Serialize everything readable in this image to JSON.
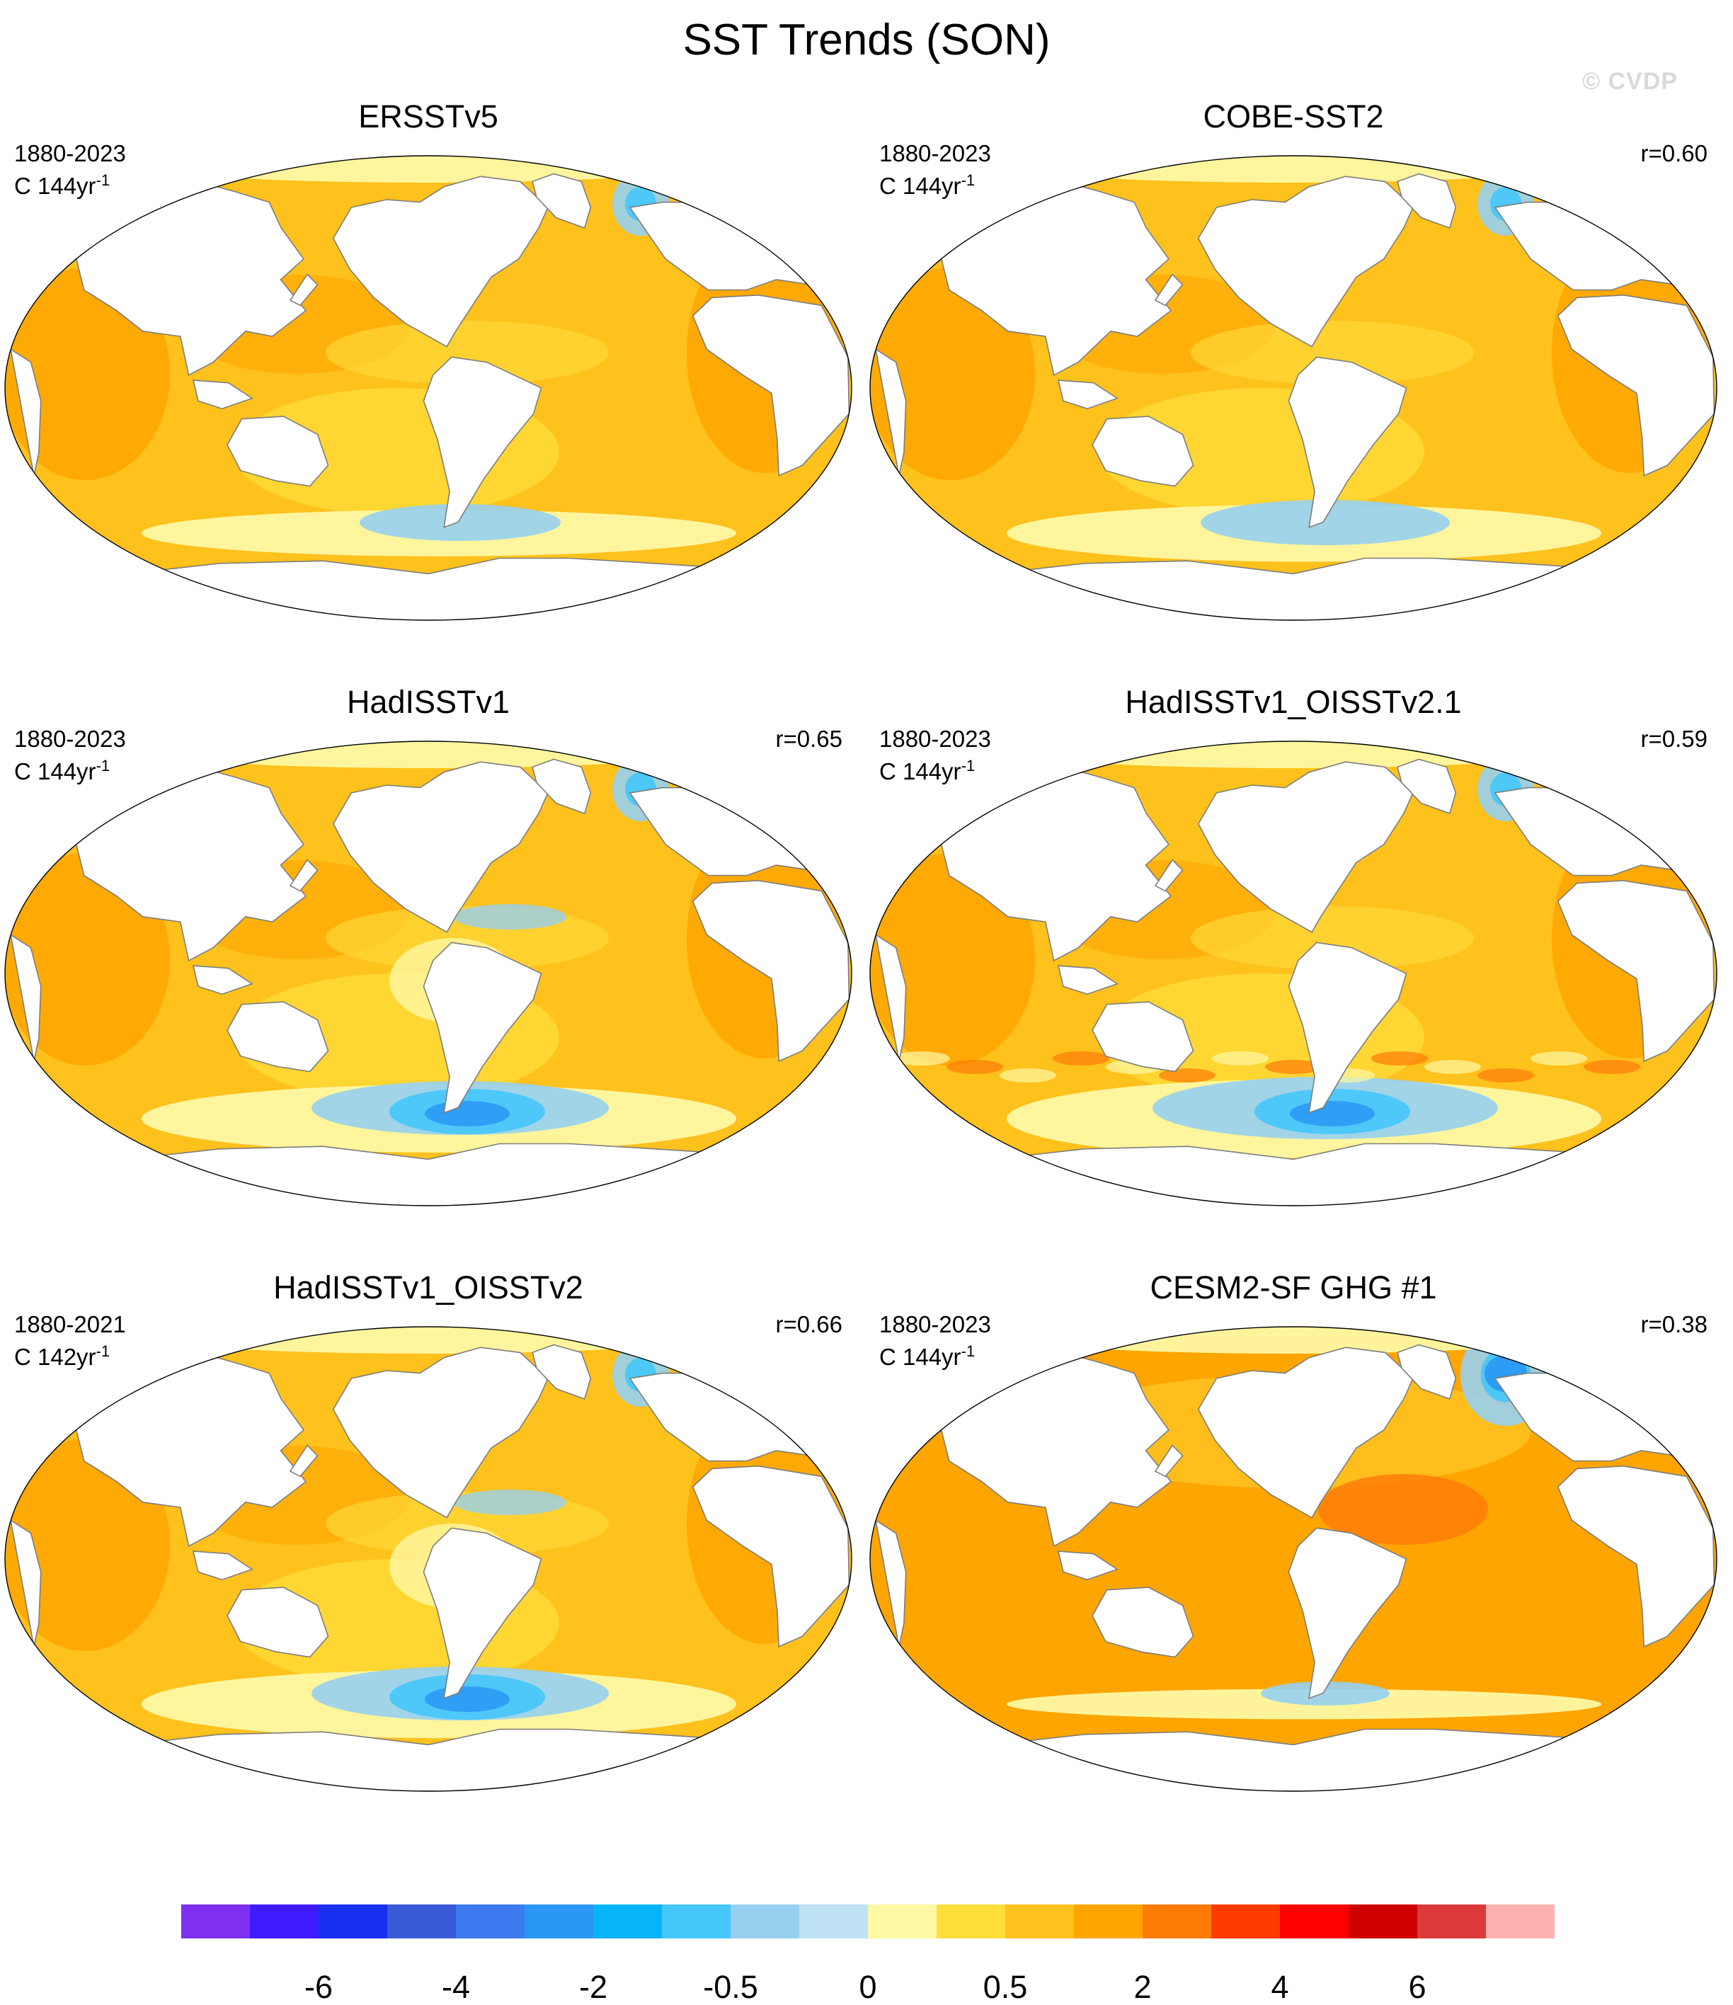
{
  "title": "SST Trends (SON)",
  "watermark": "© CVDP",
  "panels": [
    {
      "name": "ERSSTv5",
      "period": "1880-2023",
      "units": "C 144yr",
      "units_sup": "-1",
      "r": "",
      "anomaly": "north-atlantic-warming-hole",
      "cold_south": 0.6
    },
    {
      "name": "COBE-SST2",
      "period": "1880-2023",
      "units": "C 144yr",
      "units_sup": "-1",
      "r": "r=0.60",
      "anomaly": "labrador-cool",
      "cold_south": 0.8
    },
    {
      "name": "HadISSTv1",
      "period": "1880-2023",
      "units": "C 144yr",
      "units_sup": "-1",
      "r": "r=0.65",
      "anomaly": "pacific-cool-tongue",
      "cold_south": 1.0
    },
    {
      "name": "HadISSTv1_OISSTv2.1",
      "period": "1880-2023",
      "units": "C 144yr",
      "units_sup": "-1",
      "r": "r=0.59",
      "anomaly": "noisy-southern-ocean",
      "cold_south": 1.2
    },
    {
      "name": "HadISSTv1_OISSTv2",
      "period": "1880-2021",
      "units": "C 142yr",
      "units_sup": "-1",
      "r": "r=0.66",
      "anomaly": "pacific-cool-tongue",
      "cold_south": 1.0
    },
    {
      "name": "CESM2-SF GHG #1",
      "period": "1880-2023",
      "units": "C 144yr",
      "units_sup": "-1",
      "r": "r=0.38",
      "anomaly": "strong-warming-hole",
      "cold_south": 0.3
    }
  ],
  "colorbar": {
    "colors": [
      "#7f2ff0",
      "#3f1bff",
      "#1730f0",
      "#3a5ad8",
      "#3b7bef",
      "#2a97f5",
      "#08b4f8",
      "#44c7fa",
      "#97d0ef",
      "#bfe2f5",
      "#fff8a4",
      "#ffde3c",
      "#ffc11c",
      "#ffa500",
      "#ff7b08",
      "#ff3b00",
      "#ff0000",
      "#cf0000",
      "#db3a3a",
      "#ffb1b1"
    ],
    "labels": [
      "-6",
      "-4",
      "-2",
      "-0.5",
      "0",
      "0.5",
      "2",
      "4",
      "6"
    ]
  },
  "legend_palette": {
    "land": "#ffffff",
    "coast": "#7d7d7d",
    "light_warm": "#ffde3c",
    "mid_warm": "#ffc11c",
    "strong_warm": "#ffa500",
    "hot": "#ff7b08",
    "pale_yellow": "#fff8a4",
    "pale_blue": "#97d0ef",
    "blue": "#44c7fa",
    "deep_blue": "#2a97f5"
  }
}
